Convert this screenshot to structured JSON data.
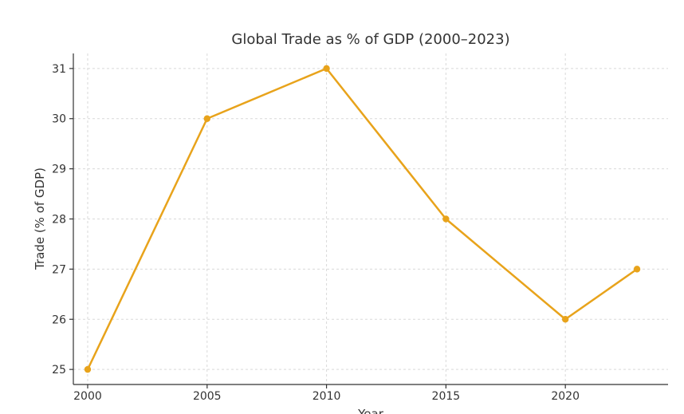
{
  "chart_data": {
    "type": "line",
    "title": "Global Trade as % of GDP (2000–2023)",
    "xlabel": "Year",
    "ylabel": "Trade (% of GDP)",
    "x": [
      2000,
      2005,
      2010,
      2015,
      2020,
      2023
    ],
    "series": [
      {
        "values": [
          25,
          30,
          31,
          28,
          26,
          27
        ],
        "color": "#e8a31b"
      }
    ],
    "xlim": [
      1999.4,
      2024.3
    ],
    "ylim": [
      24.7,
      31.3
    ],
    "xticks": [
      "2000",
      "2005",
      "2010",
      "2015",
      "2020"
    ],
    "yticks": [
      "25",
      "26",
      "27",
      "28",
      "29",
      "30",
      "31"
    ],
    "grid": true,
    "legend": "none"
  }
}
